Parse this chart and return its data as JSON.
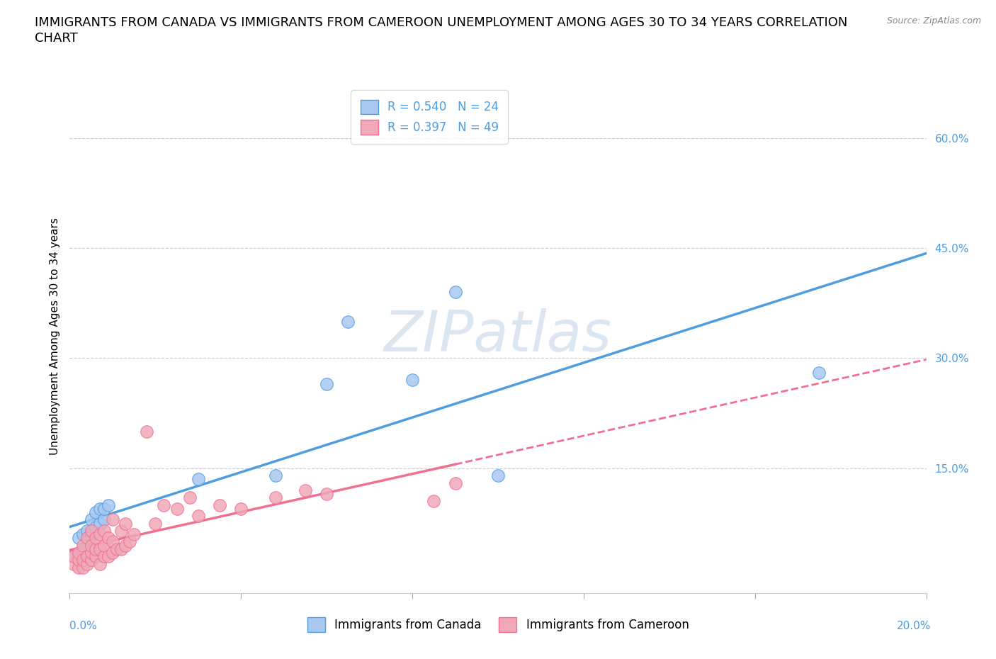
{
  "title_line1": "IMMIGRANTS FROM CANADA VS IMMIGRANTS FROM CAMEROON UNEMPLOYMENT AMONG AGES 30 TO 34 YEARS CORRELATION",
  "title_line2": "CHART",
  "source": "Source: ZipAtlas.com",
  "ylabel": "Unemployment Among Ages 30 to 34 years",
  "legend_canada": "Immigrants from Canada",
  "legend_cameroon": "Immigrants from Cameroon",
  "legend_r_canada": "R = 0.540",
  "legend_n_canada": "N = 24",
  "legend_r_cameroon": "R = 0.397",
  "legend_n_cameroon": "N = 49",
  "canada_color": "#a8c8f0",
  "cameroon_color": "#f0a8b8",
  "canada_line_color": "#4d9de0",
  "cameroon_line_color": "#f07090",
  "watermark": "ZIPatlas",
  "watermark_color": "#c8d8e8",
  "ytick_labels": [
    "15.0%",
    "30.0%",
    "45.0%",
    "60.0%"
  ],
  "ytick_values": [
    0.15,
    0.3,
    0.45,
    0.6
  ],
  "xlim": [
    0.0,
    0.2
  ],
  "ylim": [
    -0.02,
    0.68
  ],
  "canada_x": [
    0.001,
    0.002,
    0.002,
    0.003,
    0.003,
    0.004,
    0.004,
    0.005,
    0.005,
    0.006,
    0.006,
    0.007,
    0.007,
    0.008,
    0.008,
    0.009,
    0.03,
    0.048,
    0.06,
    0.065,
    0.08,
    0.09,
    0.1,
    0.175
  ],
  "canada_y": [
    0.03,
    0.025,
    0.055,
    0.04,
    0.06,
    0.05,
    0.065,
    0.06,
    0.08,
    0.07,
    0.09,
    0.075,
    0.095,
    0.08,
    0.095,
    0.1,
    0.135,
    0.14,
    0.265,
    0.35,
    0.27,
    0.39,
    0.14,
    0.28
  ],
  "cameroon_x": [
    0.001,
    0.001,
    0.002,
    0.002,
    0.002,
    0.003,
    0.003,
    0.003,
    0.004,
    0.004,
    0.004,
    0.005,
    0.005,
    0.005,
    0.005,
    0.006,
    0.006,
    0.006,
    0.007,
    0.007,
    0.007,
    0.008,
    0.008,
    0.008,
    0.009,
    0.009,
    0.01,
    0.01,
    0.01,
    0.011,
    0.012,
    0.012,
    0.013,
    0.013,
    0.014,
    0.015,
    0.018,
    0.02,
    0.022,
    0.025,
    0.028,
    0.03,
    0.035,
    0.04,
    0.048,
    0.055,
    0.06,
    0.085,
    0.09
  ],
  "cameroon_y": [
    0.02,
    0.03,
    0.015,
    0.025,
    0.035,
    0.015,
    0.025,
    0.045,
    0.02,
    0.03,
    0.055,
    0.025,
    0.035,
    0.045,
    0.065,
    0.03,
    0.04,
    0.055,
    0.02,
    0.04,
    0.06,
    0.03,
    0.045,
    0.065,
    0.03,
    0.055,
    0.035,
    0.05,
    0.08,
    0.04,
    0.04,
    0.065,
    0.045,
    0.075,
    0.05,
    0.06,
    0.2,
    0.075,
    0.1,
    0.095,
    0.11,
    0.085,
    0.1,
    0.095,
    0.11,
    0.12,
    0.115,
    0.105,
    0.13
  ],
  "canada_line_start_x": 0.0,
  "canada_line_end_x": 0.2,
  "cameroon_line_start_x": 0.0,
  "cameroon_line_end_x": 0.2,
  "background_color": "#ffffff",
  "grid_color": "#cccccc",
  "title_fontsize": 13,
  "axis_fontsize": 11,
  "tick_fontsize": 11,
  "legend_fontsize": 12
}
